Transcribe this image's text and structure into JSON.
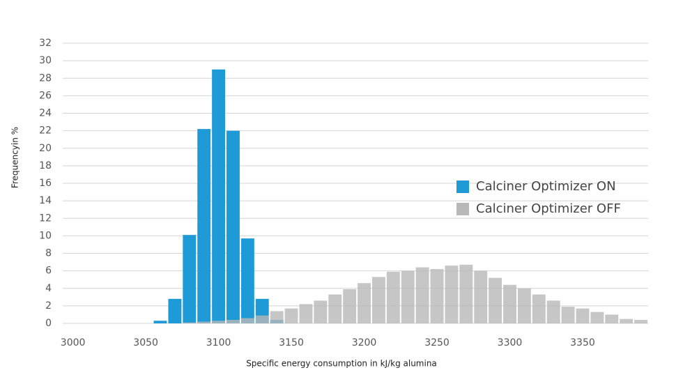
{
  "chart_data": {
    "type": "histogram",
    "x_label": "Specific energy consumption in kJ/kg alumina",
    "y_label": "Frequencyin %",
    "bins": [
      3055,
      3065,
      3075,
      3085,
      3095,
      3105,
      3115,
      3125,
      3135,
      3145,
      3155,
      3165,
      3175,
      3185,
      3195,
      3205,
      3215,
      3225,
      3235,
      3245,
      3255,
      3265,
      3275,
      3285,
      3295,
      3305,
      3315,
      3325,
      3335,
      3345,
      3355,
      3365,
      3375,
      3385,
      3395
    ],
    "series": [
      {
        "name": "Calciner Optimizer ON",
        "color": "#1e9ad6",
        "values": [
          0.3,
          2.8,
          10.1,
          22.2,
          29,
          22,
          9.7,
          2.8,
          0.4,
          0,
          0,
          0,
          0,
          0,
          0,
          0,
          0,
          0,
          0,
          0,
          0,
          0,
          0,
          0,
          0,
          0,
          0,
          0,
          0,
          0,
          0,
          0,
          0,
          0
        ]
      },
      {
        "name": "Calciner Optimizer OFF",
        "color": "#b8b8b8",
        "values": [
          0,
          0,
          0.1,
          0.2,
          0.3,
          0.4,
          0.6,
          0.9,
          1.4,
          1.7,
          2.2,
          2.6,
          3.3,
          3.9,
          4.6,
          5.3,
          5.9,
          6.0,
          6.4,
          6.2,
          6.6,
          6.7,
          6.0,
          5.2,
          4.4,
          4.0,
          3.3,
          2.6,
          1.9,
          1.7,
          1.3,
          1.0,
          0.5,
          0.4
        ]
      }
    ],
    "xlim": [
      2993,
      3395
    ],
    "xticks": [
      3000,
      3050,
      3100,
      3150,
      3200,
      3250,
      3300,
      3350
    ],
    "ylim": [
      0,
      32
    ],
    "yticks": [
      0,
      2,
      4,
      6,
      8,
      10,
      12,
      14,
      16,
      18,
      20,
      22,
      24,
      26,
      28,
      30,
      32
    ],
    "grid": true,
    "legend": "right"
  }
}
